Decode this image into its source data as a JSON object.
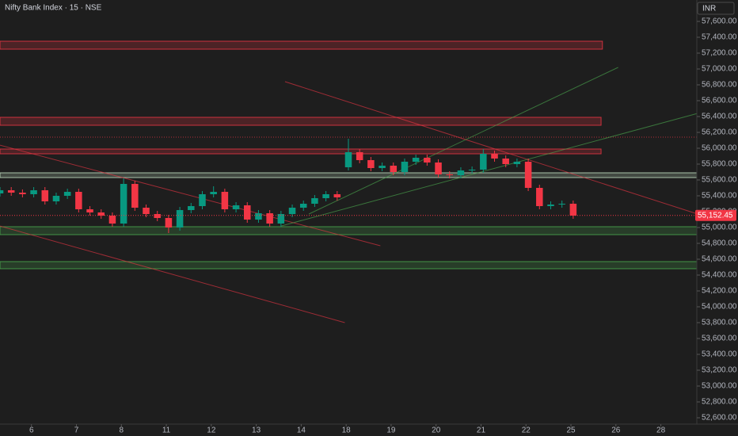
{
  "chart_data": {
    "type": "candlestick",
    "title": "Nifty Bank Index · 15 · NSE",
    "currency": "INR",
    "x": [
      -0.7,
      -0.45,
      -0.2,
      0.05,
      0.3,
      0.55,
      0.8,
      1.05,
      1.3,
      1.55,
      1.8,
      2.05,
      2.3,
      2.55,
      2.8,
      3.05,
      3.3,
      3.55,
      3.8,
      4.05,
      4.3,
      4.55,
      4.8,
      5.05,
      5.3,
      5.55,
      5.8,
      6.05,
      6.3,
      6.55,
      6.8,
      7.05,
      7.3,
      7.55,
      7.8,
      8.05,
      8.3,
      8.55,
      8.8,
      9.05,
      9.3,
      9.55,
      9.8,
      10.05,
      10.3,
      10.55,
      10.8,
      11.05,
      11.3,
      11.55,
      11.8,
      12.05
    ],
    "open": [
      55430,
      55470,
      55440,
      55420,
      55470,
      55330,
      55400,
      55450,
      55230,
      55190,
      55150,
      55050,
      55550,
      55250,
      55170,
      55120,
      55000,
      55220,
      55270,
      55420,
      55450,
      55230,
      55280,
      55100,
      55180,
      55050,
      55170,
      55250,
      55300,
      55370,
      55420,
      55760,
      55950,
      55850,
      55750,
      55780,
      55700,
      55830,
      55880,
      55820,
      55670,
      55660,
      55720,
      55730,
      55930,
      55870,
      55800,
      55830,
      55500,
      55270,
      55290,
      55300
    ],
    "high": [
      55510,
      55510,
      55480,
      55510,
      55510,
      55440,
      55490,
      55490,
      55270,
      55230,
      55190,
      55620,
      55590,
      55290,
      55210,
      55160,
      55260,
      55310,
      55460,
      55520,
      55490,
      55320,
      55320,
      55220,
      55220,
      55210,
      55290,
      55340,
      55410,
      55460,
      55460,
      56120,
      55990,
      55890,
      55820,
      55820,
      55870,
      55920,
      55920,
      55860,
      55710,
      55760,
      55770,
      55990,
      55970,
      55910,
      55870,
      55870,
      55540,
      55330,
      55340,
      55340
    ],
    "low": [
      55390,
      55400,
      55380,
      55380,
      55290,
      55290,
      55360,
      55190,
      55150,
      55110,
      55010,
      55010,
      55210,
      55130,
      55080,
      54930,
      54960,
      55180,
      55230,
      55380,
      55190,
      55190,
      55060,
      55060,
      55010,
      55010,
      55130,
      55210,
      55260,
      55330,
      55340,
      55720,
      55810,
      55710,
      55710,
      55660,
      55660,
      55790,
      55780,
      55630,
      55620,
      55620,
      55680,
      55690,
      55830,
      55760,
      55760,
      55460,
      55230,
      55230,
      55250,
      55110
    ],
    "close": [
      55470,
      55440,
      55420,
      55470,
      55330,
      55400,
      55450,
      55230,
      55190,
      55150,
      55050,
      55550,
      55250,
      55170,
      55120,
      55000,
      55220,
      55270,
      55420,
      55450,
      55230,
      55280,
      55100,
      55180,
      55050,
      55170,
      55250,
      55300,
      55370,
      55420,
      55380,
      55950,
      55850,
      55750,
      55780,
      55700,
      55830,
      55880,
      55820,
      55670,
      55660,
      55720,
      55730,
      55930,
      55870,
      55800,
      55830,
      55500,
      55270,
      55290,
      55300,
      55150
    ],
    "up_color": "#089981",
    "down_color": "#f23645",
    "last_price": {
      "value": 55152.45,
      "label": "55,152.45"
    },
    "zones": [
      {
        "top": 57350,
        "bottom": 57250,
        "x_end": 12.7,
        "color": "#f23645"
      },
      {
        "top": 56390,
        "bottom": 56290,
        "x_end": 12.67,
        "color": "#f23645"
      },
      {
        "top": 55990,
        "bottom": 55930,
        "x_end": 12.67,
        "color": "#f23645"
      },
      {
        "top": 55690,
        "bottom": 55630,
        "x_end": 14.82,
        "color": "#c8e6c9"
      },
      {
        "top": 55010,
        "bottom": 54910,
        "x_end": 14.82,
        "color": "#4caf50"
      },
      {
        "top": 54570,
        "bottom": 54480,
        "x_end": 14.82,
        "color": "#4caf50"
      }
    ],
    "hlines": [
      {
        "value": 56140,
        "color": "#f23645"
      }
    ],
    "lines": [
      {
        "x": [
          5.64,
          14.82
        ],
        "y": [
          56840,
          55170
        ],
        "color": "#f23645"
      },
      {
        "x": [
          -0.71,
          7.76
        ],
        "y": [
          56040,
          54770
        ],
        "color": "#f23645"
      },
      {
        "x": [
          -0.71,
          6.97
        ],
        "y": [
          55020,
          53800
        ],
        "color": "#f23645"
      },
      {
        "x": [
          5.56,
          14.82
        ],
        "y": [
          55020,
          56440
        ],
        "color": "#4caf50"
      },
      {
        "x": [
          6.17,
          13.05
        ],
        "y": [
          55170,
          57020
        ],
        "color": "#4caf50"
      }
    ],
    "xlim": [
      -0.7,
      14.8
    ],
    "ylim": [
      52520,
      57870
    ],
    "xticks": [
      {
        "value": 0,
        "label": "6"
      },
      {
        "value": 1,
        "label": "7"
      },
      {
        "value": 2,
        "label": "8"
      },
      {
        "value": 3,
        "label": "11"
      },
      {
        "value": 4,
        "label": "12"
      },
      {
        "value": 5,
        "label": "13"
      },
      {
        "value": 6,
        "label": "14"
      },
      {
        "value": 7,
        "label": "18"
      },
      {
        "value": 8,
        "label": "19"
      },
      {
        "value": 9,
        "label": "20"
      },
      {
        "value": 10,
        "label": "21"
      },
      {
        "value": 11,
        "label": "22"
      },
      {
        "value": 12,
        "label": "25"
      },
      {
        "value": 13,
        "label": "26"
      },
      {
        "value": 14,
        "label": "28"
      }
    ],
    "yticks": [
      {
        "value": 57600,
        "label": "57,600.00"
      },
      {
        "value": 57400,
        "label": "57,400.00"
      },
      {
        "value": 57200,
        "label": "57,200.00"
      },
      {
        "value": 57000,
        "label": "57,000.00"
      },
      {
        "value": 56800,
        "label": "56,800.00"
      },
      {
        "value": 56600,
        "label": "56,600.00"
      },
      {
        "value": 56400,
        "label": "56,400.00"
      },
      {
        "value": 56200,
        "label": "56,200.00"
      },
      {
        "value": 56000,
        "label": "56,000.00"
      },
      {
        "value": 55800,
        "label": "55,800.00"
      },
      {
        "value": 55600,
        "label": "55,600.00"
      },
      {
        "value": 55400,
        "label": "55,400.00"
      },
      {
        "value": 55200,
        "label": "55,200.00"
      },
      {
        "value": 55000,
        "label": "55,000.00"
      },
      {
        "value": 54800,
        "label": "54,800.00"
      },
      {
        "value": 54600,
        "label": "54,600.00"
      },
      {
        "value": 54400,
        "label": "54,400.00"
      },
      {
        "value": 54200,
        "label": "54,200.00"
      },
      {
        "value": 54000,
        "label": "54,000.00"
      },
      {
        "value": 53800,
        "label": "53,800.00"
      },
      {
        "value": 53600,
        "label": "53,600.00"
      },
      {
        "value": 53400,
        "label": "53,400.00"
      },
      {
        "value": 53200,
        "label": "53,200.00"
      },
      {
        "value": 53000,
        "label": "53,000.00"
      },
      {
        "value": 52800,
        "label": "52,800.00"
      },
      {
        "value": 52600,
        "label": "52,600.00"
      }
    ]
  }
}
